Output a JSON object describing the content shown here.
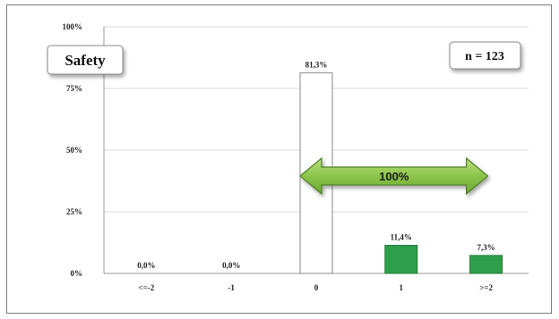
{
  "chart_data": {
    "type": "bar",
    "title": "Safety",
    "annotation_n": "n = 123",
    "categories": [
      "<=-2",
      "-1",
      "0",
      "1",
      ">=2"
    ],
    "values": [
      0.0,
      0.0,
      81.3,
      11.4,
      7.3
    ],
    "data_labels": [
      "0,0%",
      "0,0%",
      "81,3%",
      "11,4%",
      "7,3%"
    ],
    "bar_colors": [
      "#2e9e4a",
      "#2e9e4a",
      "#ffffff",
      "#2e9e4a",
      "#2e9e4a"
    ],
    "y_ticks": [
      "0%",
      "25%",
      "50%",
      "75%",
      "100%"
    ],
    "ylim": [
      0,
      100
    ],
    "grid": true,
    "arrow": {
      "label": "100%",
      "from_category": "0",
      "to_category": ">=2",
      "color": "#8dc54b"
    }
  }
}
